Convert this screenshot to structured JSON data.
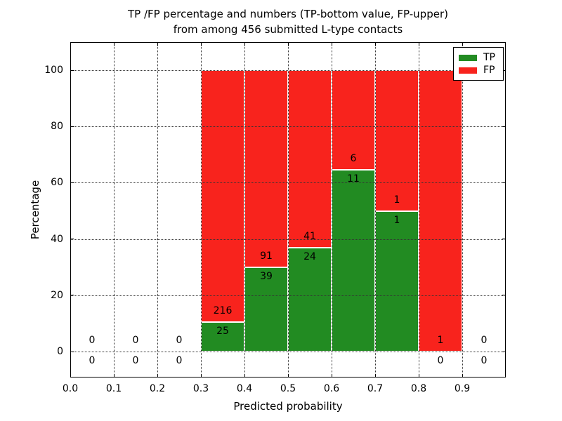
{
  "figure": {
    "background": "#ffffff",
    "text_color": "#000000"
  },
  "chart_data": {
    "type": "bar",
    "stacked": true,
    "title_line1": "TP /FP percentage and numbers (TP-bottom value, FP-upper)",
    "title_line2": "from among 456 submitted L-type contacts",
    "xlabel": "Predicted probability",
    "ylabel": "Percentage",
    "xlim": [
      0.0,
      1.0
    ],
    "ylim": [
      -10,
      110
    ],
    "grid": true,
    "grid_style": "dotted",
    "legend_position": "upper right",
    "x_ticks": [
      "0.0",
      "0.1",
      "0.2",
      "0.3",
      "0.4",
      "0.5",
      "0.6",
      "0.7",
      "0.8",
      "0.9"
    ],
    "y_ticks": [
      "0",
      "20",
      "40",
      "60",
      "80",
      "100"
    ],
    "series": [
      {
        "name": "TP",
        "color": "#228b22",
        "counts": [
          0,
          0,
          0,
          25,
          39,
          24,
          11,
          1,
          0,
          0
        ]
      },
      {
        "name": "FP",
        "color": "#f8231d",
        "counts": [
          0,
          0,
          0,
          216,
          91,
          41,
          6,
          1,
          1,
          0
        ]
      }
    ],
    "bins": [
      {
        "x0": 0.0,
        "x1": 0.1,
        "tp": 0,
        "fp": 0
      },
      {
        "x0": 0.1,
        "x1": 0.2,
        "tp": 0,
        "fp": 0
      },
      {
        "x0": 0.2,
        "x1": 0.3,
        "tp": 0,
        "fp": 0
      },
      {
        "x0": 0.3,
        "x1": 0.4,
        "tp": 25,
        "fp": 216
      },
      {
        "x0": 0.4,
        "x1": 0.5,
        "tp": 39,
        "fp": 91
      },
      {
        "x0": 0.5,
        "x1": 0.6,
        "tp": 24,
        "fp": 41
      },
      {
        "x0": 0.6,
        "x1": 0.7,
        "tp": 11,
        "fp": 6
      },
      {
        "x0": 0.7,
        "x1": 0.8,
        "tp": 1,
        "fp": 1
      },
      {
        "x0": 0.8,
        "x1": 0.9,
        "tp": 0,
        "fp": 1
      },
      {
        "x0": 0.9,
        "x1": 1.0,
        "tp": 0,
        "fp": 0
      }
    ]
  }
}
